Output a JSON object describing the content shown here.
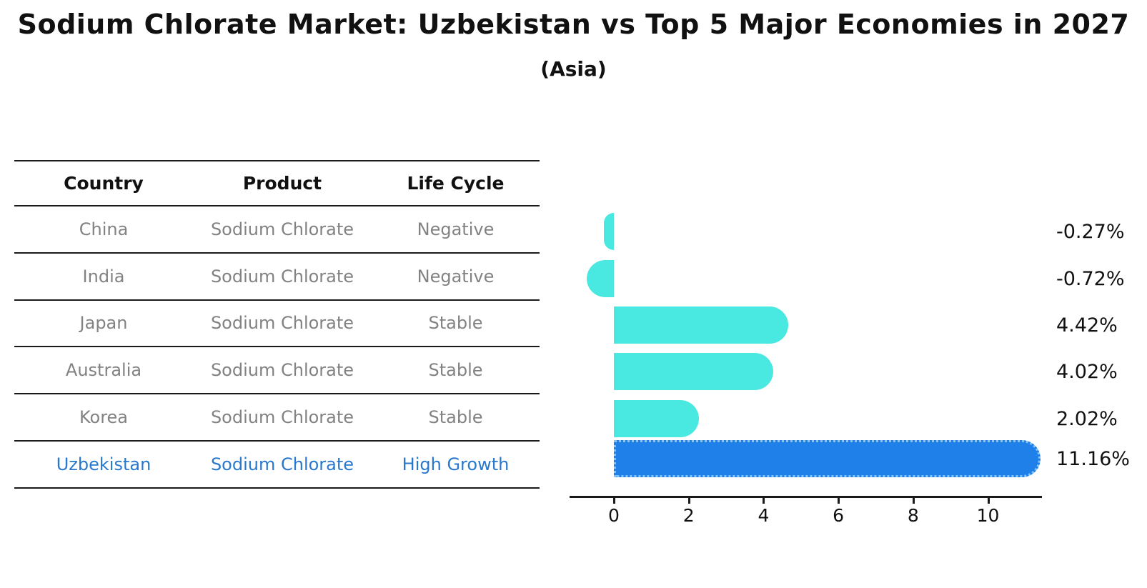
{
  "title": "Sodium Chlorate Market: Uzbekistan vs Top 5 Major Economies in 2027",
  "subtitle": "(Asia)",
  "table": {
    "headers": [
      "Country",
      "Product",
      "Life Cycle"
    ],
    "rows": [
      {
        "country": "China",
        "product": "Sodium Chlorate",
        "life_cycle": "Negative",
        "highlight": false
      },
      {
        "country": "India",
        "product": "Sodium Chlorate",
        "life_cycle": "Negative",
        "highlight": false
      },
      {
        "country": "Japan",
        "product": "Sodium Chlorate",
        "life_cycle": "Stable",
        "highlight": false
      },
      {
        "country": "Australia",
        "product": "Sodium Chlorate",
        "life_cycle": "Stable",
        "highlight": false
      },
      {
        "country": "Korea",
        "product": "Sodium Chlorate",
        "life_cycle": "Stable",
        "highlight": false
      },
      {
        "country": "Uzbekistan",
        "product": "Sodium Chlorate",
        "life_cycle": "High Growth",
        "highlight": true
      }
    ]
  },
  "chart_data": {
    "type": "bar",
    "orientation": "horizontal",
    "title": "Sodium Chlorate Market: Uzbekistan vs Top 5 Major Economies in 2027",
    "subtitle": "(Asia)",
    "categories": [
      "China",
      "India",
      "Japan",
      "Australia",
      "Korea",
      "Uzbekistan"
    ],
    "values": [
      -0.27,
      -0.72,
      4.42,
      4.02,
      2.02,
      11.16
    ],
    "value_labels": [
      "-0.27%",
      "-0.72%",
      "4.42%",
      "4.02%",
      "2.02%",
      "11.16%"
    ],
    "unit": "%",
    "x_ticks": [
      0,
      2,
      4,
      6,
      8,
      10
    ],
    "xlim": [
      -1.2,
      11.5
    ],
    "grid": false,
    "legend": "none",
    "highlight_index": 5,
    "colors": {
      "bar": "#49E8E0",
      "highlight_bar": "#1E80E8",
      "highlight_border": "#85C4F6",
      "highlight_text": "#2878CE",
      "row_text": "#828282",
      "axis": "#1a1a1a"
    }
  }
}
